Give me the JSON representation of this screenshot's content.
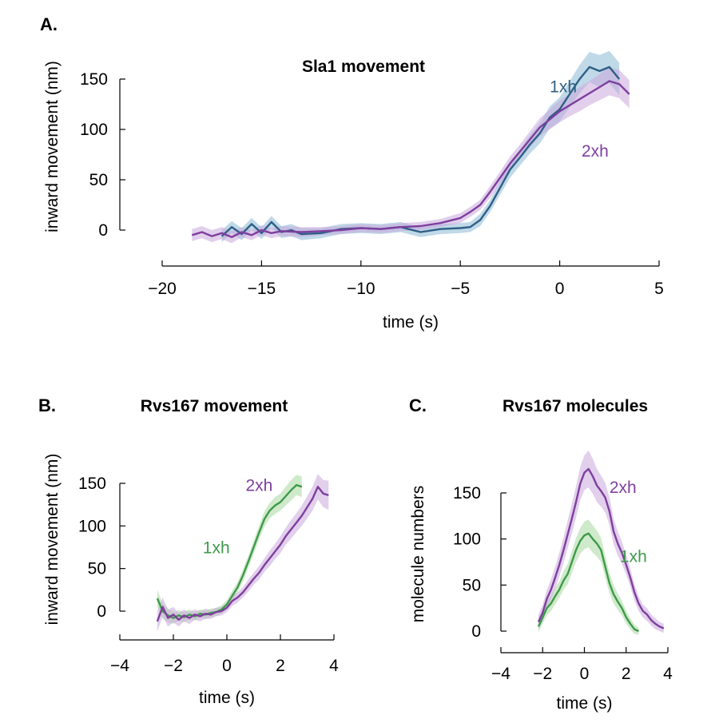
{
  "colors": {
    "one_xh_A": "#2e5f86",
    "two_xh": "#7f3f9e",
    "one_xh_green": "#3e9a4a"
  },
  "chart_data": [
    {
      "id": "A",
      "type": "line",
      "panel_label": "A.",
      "title": "Sla1 movement",
      "xlabel": "time (s)",
      "ylabel": "inward movement (nm)",
      "xlim": [
        -20,
        5
      ],
      "ylim": [
        0,
        150
      ],
      "xticks": [
        -20,
        -15,
        -10,
        -5,
        0,
        5
      ],
      "xtick_labels": [
        "−20",
        "−15",
        "−10",
        "−5",
        "0",
        "5"
      ],
      "yticks": [
        0,
        50,
        100,
        150
      ],
      "ytick_labels": [
        "0",
        "50",
        "100",
        "150"
      ],
      "grid": false,
      "series": [
        {
          "name": "1xh",
          "color": "#2e5f86",
          "band_color": "#8dbad6",
          "x": [
            -17,
            -16.5,
            -16,
            -15.5,
            -15,
            -14.5,
            -14,
            -13.5,
            -13,
            -12,
            -11,
            -10,
            -9,
            -8,
            -7,
            -6,
            -5,
            -4.5,
            -4,
            -3.5,
            -3,
            -2.5,
            -2,
            -1.5,
            -1,
            -0.5,
            0,
            0.5,
            1,
            1.5,
            2,
            2.5,
            3
          ],
          "y": [
            -6,
            3,
            -4,
            6,
            -3,
            8,
            -2,
            0,
            -4,
            -3,
            1,
            2,
            1,
            3,
            -2,
            1,
            2,
            3,
            10,
            24,
            42,
            60,
            72,
            85,
            96,
            112,
            120,
            135,
            150,
            162,
            158,
            162,
            150
          ],
          "err": [
            6,
            6,
            6,
            6,
            6,
            6,
            6,
            6,
            6,
            5,
            5,
            5,
            5,
            5,
            5,
            5,
            5,
            5,
            6,
            6,
            7,
            8,
            8,
            9,
            10,
            11,
            12,
            13,
            14,
            15,
            16,
            16,
            16
          ]
        },
        {
          "name": "2xh",
          "color": "#7f3f9e",
          "band_color": "#c9a7dd",
          "x": [
            -18.5,
            -18,
            -17.5,
            -17,
            -16.5,
            -16,
            -15.5,
            -15,
            -14.5,
            -14,
            -13,
            -12,
            -11,
            -10,
            -9,
            -8,
            -7,
            -6,
            -5,
            -4.5,
            -4,
            -3.5,
            -3,
            -2.5,
            -2,
            -1.5,
            -1,
            -0.5,
            0,
            0.5,
            1,
            1.5,
            2,
            2.5,
            3,
            3.5
          ],
          "y": [
            -5,
            -2,
            -6,
            -3,
            -7,
            -2,
            -5,
            0,
            -3,
            -1,
            -2,
            -1,
            0,
            2,
            1,
            3,
            4,
            7,
            12,
            18,
            25,
            38,
            52,
            66,
            78,
            90,
            102,
            110,
            118,
            124,
            130,
            136,
            142,
            148,
            145,
            135
          ],
          "err": [
            6,
            6,
            6,
            6,
            6,
            5,
            5,
            5,
            5,
            5,
            5,
            4,
            4,
            4,
            4,
            4,
            4,
            4,
            5,
            5,
            5,
            6,
            6,
            7,
            7,
            8,
            9,
            10,
            11,
            11,
            12,
            12,
            13,
            14,
            14,
            14
          ]
        }
      ],
      "annotations": [
        {
          "text": "1xh",
          "series": "1xh",
          "x": -0.5,
          "y": 137
        },
        {
          "text": "2xh",
          "series": "2xh",
          "x": 1.1,
          "y": 73
        }
      ]
    },
    {
      "id": "B",
      "type": "line",
      "panel_label": "B.",
      "title": "Rvs167 movement",
      "xlabel": "time (s)",
      "ylabel": "inward movement (nm)",
      "xlim": [
        -4,
        4
      ],
      "ylim": [
        0,
        150
      ],
      "xticks": [
        -4,
        -2,
        0,
        2,
        4
      ],
      "xtick_labels": [
        "−4",
        "−2",
        "0",
        "2",
        "4"
      ],
      "yticks": [
        0,
        50,
        100,
        150
      ],
      "ytick_labels": [
        "0",
        "50",
        "100",
        "150"
      ],
      "grid": false,
      "series": [
        {
          "name": "1xh",
          "color": "#3e9a4a",
          "band_color": "#a8d8a0",
          "x": [
            -2.6,
            -2.4,
            -2.2,
            -2,
            -1.8,
            -1.6,
            -1.4,
            -1.2,
            -1,
            -0.8,
            -0.6,
            -0.4,
            -0.2,
            0,
            0.2,
            0.4,
            0.6,
            0.8,
            1,
            1.2,
            1.4,
            1.6,
            1.8,
            2,
            2.2,
            2.4,
            2.6,
            2.8
          ],
          "y": [
            15,
            0,
            -5,
            -8,
            -5,
            -7,
            -4,
            -6,
            -3,
            -4,
            -2,
            -1,
            2,
            8,
            18,
            28,
            42,
            58,
            75,
            92,
            108,
            118,
            124,
            128,
            135,
            142,
            148,
            146
          ],
          "err": [
            10,
            9,
            8,
            7,
            6,
            6,
            6,
            5,
            5,
            5,
            5,
            5,
            5,
            5,
            6,
            6,
            7,
            7,
            8,
            8,
            9,
            9,
            10,
            10,
            11,
            12,
            12,
            12
          ]
        },
        {
          "name": "2xh",
          "color": "#7f3f9e",
          "band_color": "#c9a7dd",
          "x": [
            -2.6,
            -2.4,
            -2.2,
            -2,
            -1.8,
            -1.6,
            -1.4,
            -1.2,
            -1,
            -0.8,
            -0.6,
            -0.4,
            -0.2,
            0,
            0.2,
            0.4,
            0.6,
            0.8,
            1,
            1.2,
            1.4,
            1.6,
            1.8,
            2,
            2.2,
            2.4,
            2.6,
            2.8,
            3,
            3.2,
            3.4,
            3.6,
            3.8
          ],
          "y": [
            -12,
            5,
            -8,
            -4,
            -10,
            -5,
            -8,
            -4,
            -6,
            -3,
            -4,
            -1,
            0,
            4,
            12,
            16,
            22,
            30,
            38,
            45,
            54,
            62,
            70,
            78,
            88,
            96,
            104,
            112,
            122,
            132,
            146,
            138,
            136
          ],
          "err": [
            12,
            11,
            10,
            9,
            8,
            7,
            7,
            6,
            6,
            6,
            5,
            5,
            5,
            5,
            6,
            6,
            6,
            7,
            7,
            8,
            8,
            9,
            9,
            10,
            10,
            11,
            11,
            12,
            13,
            14,
            15,
            16,
            17
          ]
        }
      ],
      "annotations": [
        {
          "text": "2xh",
          "series": "2xh",
          "x": 0.7,
          "y": 141
        },
        {
          "text": "1xh",
          "series": "1xh",
          "x": -0.9,
          "y": 68
        }
      ]
    },
    {
      "id": "C",
      "type": "line",
      "panel_label": "C.",
      "title": "Rvs167 molecules",
      "xlabel": "time (s)",
      "ylabel": "molecule numbers",
      "xlim": [
        -4,
        4
      ],
      "ylim": [
        0,
        150
      ],
      "xticks": [
        -4,
        -2,
        0,
        2,
        4
      ],
      "xtick_labels": [
        "−4",
        "−2",
        "0",
        "2",
        "4"
      ],
      "yticks": [
        0,
        50,
        100,
        150
      ],
      "ytick_labels": [
        "0",
        "50",
        "100",
        "150"
      ],
      "grid": false,
      "series": [
        {
          "name": "1xh",
          "color": "#3e9a4a",
          "band_color": "#a8d8a0",
          "x": [
            -2.2,
            -2,
            -1.8,
            -1.6,
            -1.4,
            -1.2,
            -1,
            -0.8,
            -0.6,
            -0.4,
            -0.2,
            0,
            0.2,
            0.4,
            0.6,
            0.8,
            1,
            1.2,
            1.4,
            1.6,
            1.8,
            2,
            2.2,
            2.4,
            2.6
          ],
          "y": [
            5,
            15,
            25,
            30,
            38,
            45,
            55,
            62,
            75,
            88,
            98,
            104,
            106,
            100,
            95,
            88,
            70,
            52,
            40,
            32,
            25,
            15,
            8,
            2,
            0
          ],
          "err": [
            6,
            7,
            8,
            8,
            9,
            9,
            10,
            11,
            12,
            13,
            14,
            15,
            15,
            15,
            14,
            13,
            12,
            11,
            10,
            9,
            8,
            7,
            6,
            5,
            4
          ]
        },
        {
          "name": "2xh",
          "color": "#7f3f9e",
          "band_color": "#c9a7dd",
          "x": [
            -2.2,
            -2,
            -1.8,
            -1.6,
            -1.4,
            -1.2,
            -1,
            -0.8,
            -0.6,
            -0.4,
            -0.2,
            0,
            0.2,
            0.4,
            0.6,
            0.8,
            1,
            1.2,
            1.4,
            1.6,
            1.8,
            2,
            2.2,
            2.4,
            2.6,
            2.8,
            3,
            3.2,
            3.4,
            3.6,
            3.8
          ],
          "y": [
            10,
            20,
            35,
            45,
            58,
            72,
            88,
            105,
            122,
            140,
            160,
            172,
            176,
            168,
            158,
            152,
            145,
            130,
            108,
            95,
            85,
            72,
            58,
            42,
            30,
            22,
            18,
            12,
            8,
            5,
            3
          ],
          "err": [
            8,
            9,
            10,
            11,
            12,
            13,
            14,
            15,
            16,
            17,
            18,
            19,
            20,
            19,
            18,
            17,
            16,
            15,
            14,
            13,
            12,
            11,
            10,
            9,
            8,
            7,
            7,
            6,
            6,
            5,
            5
          ]
        }
      ],
      "annotations": [
        {
          "text": "2xh",
          "series": "2xh",
          "x": 1.2,
          "y": 150
        },
        {
          "text": "1xh",
          "series": "1xh",
          "x": 1.7,
          "y": 75
        }
      ]
    }
  ]
}
